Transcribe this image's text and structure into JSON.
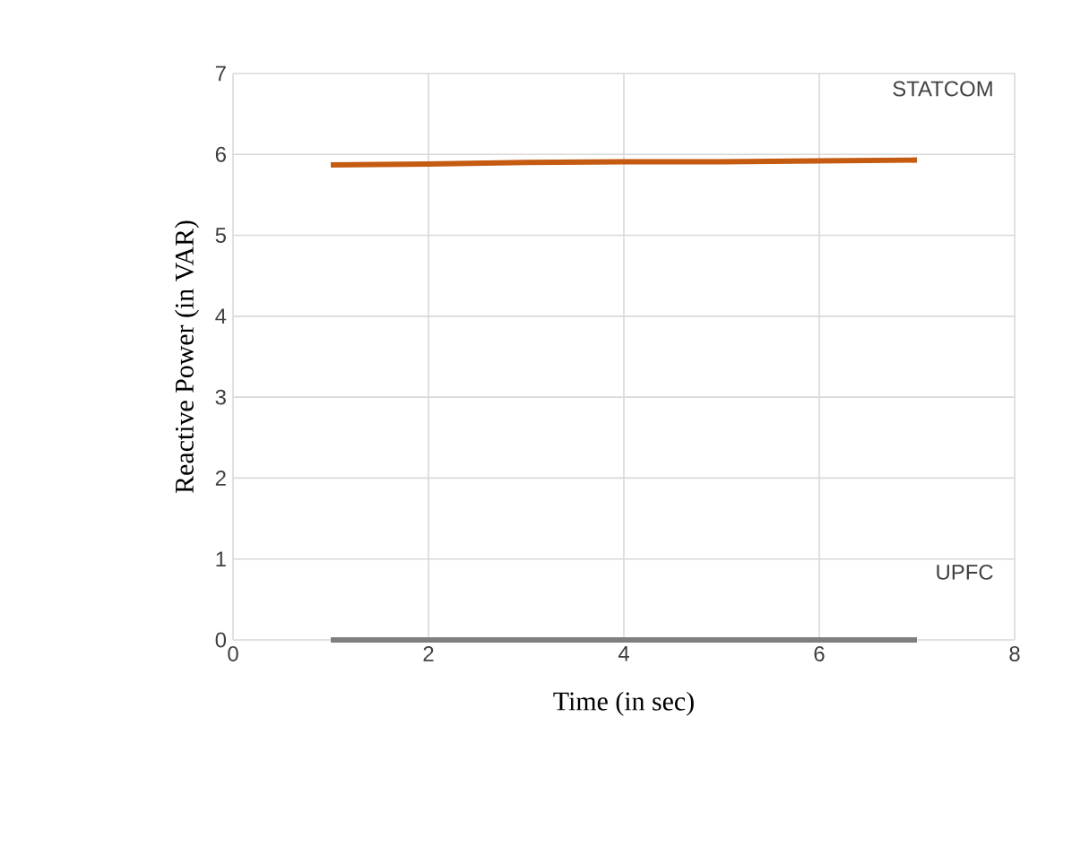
{
  "chart_data": {
    "type": "line",
    "xlabel": "Time (in sec)",
    "ylabel": "Reactive Power (in VAR)",
    "xlim": [
      0,
      8
    ],
    "ylim": [
      0,
      7
    ],
    "xticks": [
      0,
      2,
      4,
      6,
      8
    ],
    "yticks": [
      0,
      1,
      2,
      3,
      4,
      5,
      6,
      7
    ],
    "grid": true,
    "legend": false,
    "marker": "none",
    "series": [
      {
        "name": "STATCOM",
        "color": "#c55a11",
        "x": [
          1,
          2,
          3,
          4,
          5,
          6,
          7
        ],
        "values": [
          5.87,
          5.88,
          5.9,
          5.91,
          5.91,
          5.92,
          5.93
        ]
      },
      {
        "name": "UPFC",
        "color": "#7f7f7f",
        "x": [
          1,
          2,
          3,
          4,
          5,
          6,
          7
        ],
        "values": [
          0,
          0,
          0,
          0,
          0,
          0,
          0
        ]
      }
    ]
  }
}
